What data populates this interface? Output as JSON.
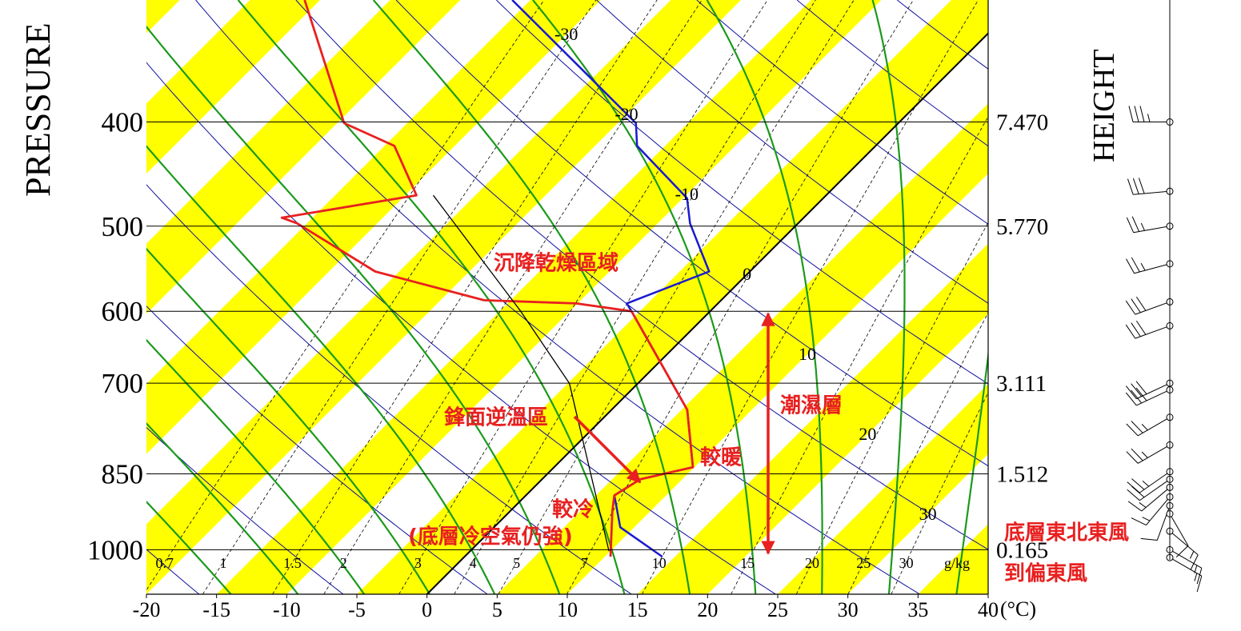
{
  "chart_data": {
    "type": "skew-t",
    "y_label": "PRESSURE",
    "y2_label": "HEIGHT",
    "x_unit": "(°C)",
    "xlim": [
      -20,
      40
    ],
    "xticks": [
      -20,
      -15,
      -10,
      -5,
      0,
      5,
      10,
      15,
      20,
      25,
      30,
      35,
      40
    ],
    "ylim": [
      1100,
      308
    ],
    "log_y": true,
    "yticks": [
      400,
      500,
      600,
      700,
      850,
      1000
    ],
    "heights": [
      {
        "value": 7.47,
        "label": "7.470"
      },
      {
        "value": 5.77,
        "label": "5.770"
      },
      null,
      3.111,
      1.512,
      0.165
    ],
    "isotherm_labels": [
      -30,
      -20,
      -10,
      0,
      10,
      20,
      30
    ],
    "highlight_isotherm": 0,
    "mixing_ratio_lines": [
      0.7,
      1,
      1.5,
      2,
      3,
      4,
      5,
      7,
      10,
      15,
      20,
      25,
      30
    ],
    "mixing_ratio_unit": "g/kg",
    "dry_adiabats": [
      250,
      260,
      270,
      280,
      290,
      300,
      310,
      320,
      330,
      340,
      350,
      360,
      370,
      380
    ],
    "moist_adiabats": [
      -20,
      -15,
      -10,
      -5,
      0,
      5,
      10,
      15,
      20,
      25,
      30,
      35
    ],
    "stripe_color": "#ffff00",
    "dry_adiabat_color": "#1010a0",
    "moist_adiabat_color": "#1a9a1a",
    "series": [
      {
        "color": "#1a1ad0",
        "pressure": [
          1015,
          953,
          890,
          860,
          838,
          741,
          600,
          590,
          551,
          497,
          471,
          421,
          401,
          308
        ],
        "values": [
          14.1,
          9.0,
          6.3,
          7.0,
          9.9,
          5.4,
          -5.6,
          -6.5,
          -2.9,
          -7.7,
          -9.7,
          -17.0,
          -18.7,
          -36.3
        ]
      },
      {
        "color": "#e82020",
        "pressure": [
          1015,
          921,
          890,
          860,
          838,
          741,
          600,
          590,
          586,
          551,
          497,
          491,
          468,
          421,
          401,
          308
        ],
        "values": [
          10.4,
          7.3,
          6.3,
          7.0,
          9.9,
          5.4,
          -5.6,
          -10.1,
          -16.9,
          -26.7,
          -35.7,
          -37.2,
          -29.2,
          -34.3,
          -39.5,
          -51.1
        ]
      },
      {
        "color": "#000000",
        "pressure": [
          1003,
          700,
          600,
          468
        ],
        "values": [
          9.9,
          -4.9,
          -13.5,
          -28.0
        ]
      }
    ],
    "winds": {
      "pressure": [
        400,
        464,
        500,
        542,
        588,
        619,
        700,
        710,
        753,
        799,
        846,
        860,
        875,
        893,
        910,
        926,
        961,
        1000,
        1017
      ],
      "direction": [
        270,
        265,
        260,
        255,
        250,
        250,
        245,
        245,
        240,
        240,
        235,
        235,
        230,
        220,
        200,
        150,
        130,
        120,
        120
      ],
      "speed": [
        35,
        30,
        25,
        25,
        30,
        30,
        30,
        30,
        25,
        25,
        25,
        20,
        15,
        15,
        10,
        10,
        15,
        15,
        15
      ]
    },
    "annotations": [
      "沉降乾燥區域",
      "鋒面逆溫區",
      "較暖",
      "潮濕層",
      "較冷",
      "(底層冷空氣仍強)",
      "底層東北東風",
      "到偏東風"
    ],
    "annotation_color": "#e82020"
  }
}
